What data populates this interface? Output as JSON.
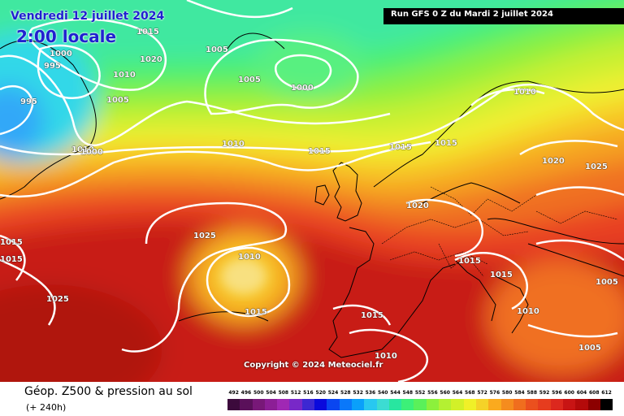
{
  "title": {
    "date": "Vendredi 12 juillet 2024",
    "time": "2:00 locale",
    "run": "Run GFS 0 Z du Mardi 2 juillet 2024"
  },
  "map": {
    "copyright": "Copyright © 2024 Meteociel.fr",
    "isobar_labels": [
      "1015",
      "1020",
      "1005",
      "1000",
      "995",
      "1010",
      "1005",
      "1005",
      "1000",
      "995",
      "1010",
      "1000",
      "1010",
      "1015",
      "1015",
      "1015",
      "1010",
      "1020",
      "1025",
      "1020",
      "1025",
      "1010",
      "1015",
      "1015",
      "1015",
      "1015",
      "1010",
      "1005",
      "1015",
      "1015",
      "1025",
      "1010",
      "1005"
    ]
  },
  "footer": {
    "field_name": "Géop. Z500 & pression au sol",
    "lead_time": "(+ 240h)"
  },
  "legend": {
    "labels": [
      "492",
      "496",
      "500",
      "504",
      "508",
      "512",
      "516",
      "520",
      "524",
      "528",
      "532",
      "536",
      "540",
      "544",
      "548",
      "552",
      "556",
      "560",
      "564",
      "568",
      "572",
      "576",
      "580",
      "584",
      "588",
      "592",
      "596",
      "600",
      "604",
      "608",
      "612"
    ],
    "colors": [
      "#3c0a3c",
      "#5a105a",
      "#781878",
      "#8c1e96",
      "#a028b4",
      "#7828c8",
      "#3c28d2",
      "#0a0adc",
      "#0a46f0",
      "#0a78fa",
      "#0aa0fa",
      "#28c8f0",
      "#3cdcd2",
      "#28e6a0",
      "#3cf078",
      "#5af05a",
      "#8cf03c",
      "#b4f032",
      "#d2f028",
      "#f0f028",
      "#f5d228",
      "#faaa1e",
      "#f58c1e",
      "#f06e1e",
      "#eb501e",
      "#e63c1e",
      "#dc281e",
      "#c81414",
      "#b40a0a",
      "#8c0000",
      "#000000"
    ]
  }
}
